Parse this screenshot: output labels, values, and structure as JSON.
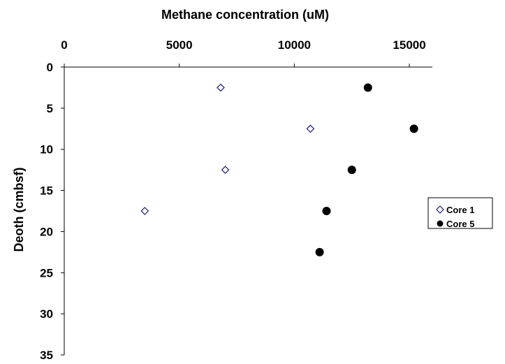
{
  "chart_data": {
    "type": "scatter",
    "xlabel": "Methane concentration (uM)",
    "ylabel": "Deoth (cmbsf)",
    "xlim": [
      0,
      16000
    ],
    "ylim": [
      0,
      35
    ],
    "x_ticks": [
      0,
      5000,
      10000,
      15000
    ],
    "y_ticks": [
      0,
      5,
      10,
      15,
      20,
      25,
      30,
      35
    ],
    "x_axis_position": "top",
    "y_reversed": true,
    "grid": false,
    "legend_position": "right",
    "series": [
      {
        "name": "Core 1",
        "marker": "open-diamond",
        "color": "#1a1a80",
        "x": [
          6800,
          10700,
          7000,
          3500
        ],
        "y": [
          2.5,
          7.5,
          12.5,
          17.5
        ]
      },
      {
        "name": "Core 5",
        "marker": "filled-circle",
        "color": "#000000",
        "x": [
          13200,
          15200,
          12500,
          11400,
          11100
        ],
        "y": [
          2.5,
          7.5,
          12.5,
          17.5,
          22.5
        ]
      }
    ]
  }
}
